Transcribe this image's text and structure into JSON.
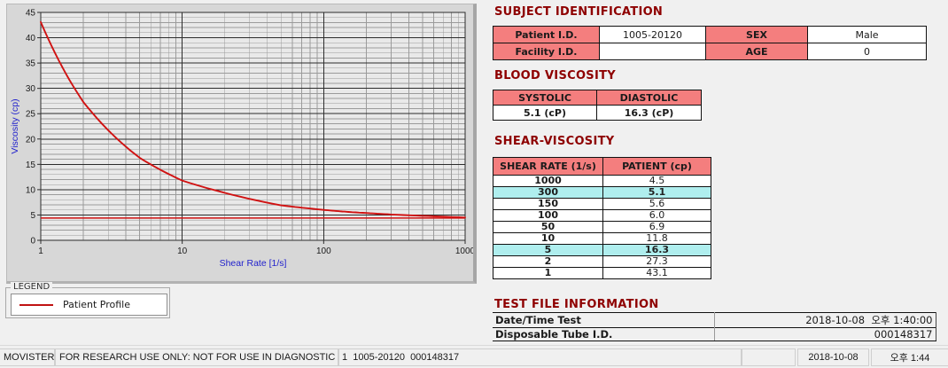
{
  "window": {
    "background": "#F0F0F0"
  },
  "chart_data": {
    "type": "line",
    "title": "",
    "xlabel": "Shear Rate [1/s]",
    "ylabel": "Viscosity (cp)",
    "xscale": "log",
    "xlim": [
      1,
      1000
    ],
    "ylim": [
      0,
      45
    ],
    "xticks": [
      1,
      10,
      100,
      1000
    ],
    "yticks": [
      0,
      5,
      10,
      15,
      20,
      25,
      30,
      35,
      40,
      45
    ],
    "grid": true,
    "axis_label_color": "#2222CC",
    "series": [
      {
        "name": "Patient Profile",
        "color": "#D01212",
        "x": [
          1,
          2,
          5,
          10,
          50,
          100,
          150,
          300,
          1000
        ],
        "y": [
          43.1,
          27.3,
          16.3,
          11.8,
          6.9,
          6.0,
          5.6,
          5.1,
          4.5
        ]
      }
    ],
    "reference_line_y": 4.4,
    "legend_position": "below-left"
  },
  "legend": {
    "title": "LEGEND",
    "items": [
      {
        "label": "Patient Profile",
        "color": "#C01212"
      }
    ]
  },
  "subject_identification": {
    "title": "SUBJECT IDENTIFICATION",
    "rows": [
      {
        "c0": "Patient I.D.",
        "c1": "1005-20120",
        "c2": "SEX",
        "c3": "Male"
      },
      {
        "c0": "Facility I.D.",
        "c1": "",
        "c2": "AGE",
        "c3": "0"
      }
    ]
  },
  "blood_viscosity": {
    "title": "BLOOD VISCOSITY",
    "headers": [
      "SYSTOLIC",
      "DIASTOLIC"
    ],
    "values": [
      "5.1 (cP)",
      "16.3 (cP)"
    ]
  },
  "shear_viscosity": {
    "title": "SHEAR-VISCOSITY",
    "headers": [
      "SHEAR RATE (1/s)",
      "PATIENT (cp)"
    ],
    "highlight_color": "#AFEEEE",
    "rows": [
      {
        "rate": "1000",
        "value": "4.5",
        "highlight": false
      },
      {
        "rate": "300",
        "value": "5.1",
        "highlight": true
      },
      {
        "rate": "150",
        "value": "5.6",
        "highlight": false
      },
      {
        "rate": "100",
        "value": "6.0",
        "highlight": false
      },
      {
        "rate": "50",
        "value": "6.9",
        "highlight": false
      },
      {
        "rate": "10",
        "value": "11.8",
        "highlight": false
      },
      {
        "rate": "5",
        "value": "16.3",
        "highlight": true
      },
      {
        "rate": "2",
        "value": "27.3",
        "highlight": false
      },
      {
        "rate": "1",
        "value": "43.1",
        "highlight": false
      }
    ]
  },
  "test_file_information": {
    "title": "TEST FILE INFORMATION",
    "rows": [
      {
        "label": "Date/Time Test",
        "value": "2018-10-08  오후 1:40:00"
      },
      {
        "label": "Disposable Tube I.D.",
        "value": "000148317"
      }
    ]
  },
  "status_bar": {
    "items": [
      "MOVISTER",
      "FOR RESEARCH USE ONLY: NOT FOR USE IN DIAGNOSTIC PROCEDURES",
      "1  1005-20120  000148317",
      "",
      "2018-10-08",
      "오후 1:44"
    ]
  },
  "colors": {
    "header_pink": "#F47E7E",
    "section_title": "#8E0000"
  }
}
